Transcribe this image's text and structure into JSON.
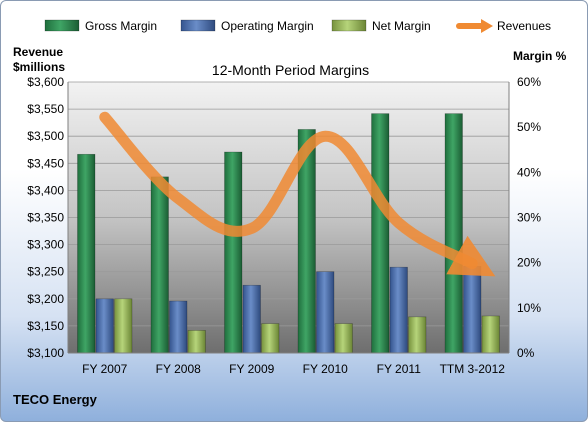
{
  "chart_data": {
    "type": "bar",
    "title": "12-Month Period Margins",
    "company": "TECO Energy",
    "categories": [
      "FY 2007",
      "FY 2008",
      "FY 2009",
      "FY 2010",
      "FY 2011",
      "TTM 3-2012"
    ],
    "series": [
      {
        "name": "Gross Margin",
        "axis": "right",
        "unit": "%",
        "values": [
          44,
          39,
          44.5,
          49.5,
          53,
          53
        ],
        "color": "#2e8b57"
      },
      {
        "name": "Operating Margin",
        "axis": "right",
        "unit": "%",
        "values": [
          12,
          11.5,
          15,
          18,
          19,
          19.2
        ],
        "color": "#4a6fb0"
      },
      {
        "name": "Net Margin",
        "axis": "right",
        "unit": "%",
        "values": [
          12,
          5,
          6.5,
          6.5,
          8,
          8.2
        ],
        "color": "#9bbb59"
      },
      {
        "name": "Revenues",
        "axis": "left",
        "type": "line",
        "unit": "$millions",
        "values": [
          3535,
          3385,
          3330,
          3500,
          3340,
          3265
        ],
        "color": "#f08a32"
      }
    ],
    "ylabel_left": "Revenue $millions",
    "ylabel_left_lines": [
      "Revenue",
      "$millions"
    ],
    "ylabel_right": "Margin %",
    "ylim_left": [
      3100,
      3600
    ],
    "yticks_left": [
      "$3,100",
      "$3,150",
      "$3,200",
      "$3,250",
      "$3,300",
      "$3,350",
      "$3,400",
      "$3,450",
      "$3,500",
      "$3,550",
      "$3,600"
    ],
    "ylim_right": [
      0,
      60
    ],
    "yticks_right": [
      "0%",
      "10%",
      "20%",
      "30%",
      "40%",
      "50%",
      "60%"
    ],
    "legend_position": "top",
    "grid": true
  }
}
